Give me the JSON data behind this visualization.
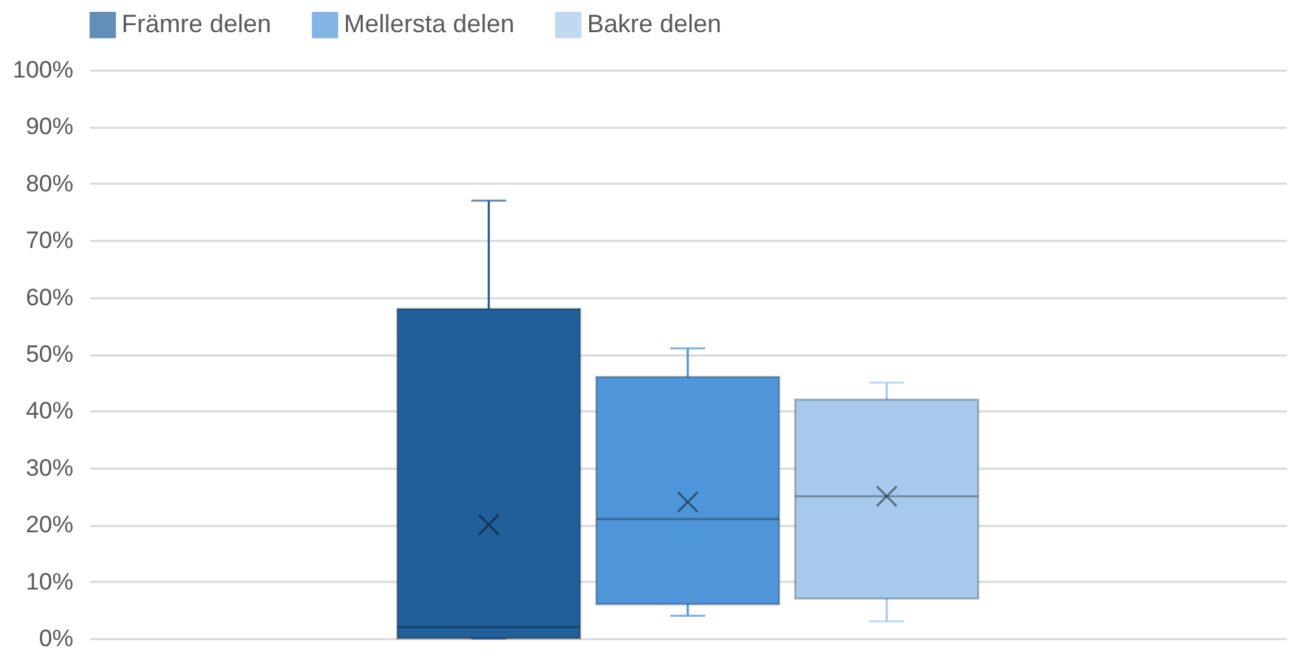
{
  "chart_data": {
    "type": "box",
    "categories": [
      null
    ],
    "series": [
      {
        "name": "Främre delen",
        "color": "#215f9a",
        "boxes": [
          {
            "low": 0,
            "q1": 0,
            "median": 2,
            "q3": 58,
            "high": 77,
            "mean": 20
          }
        ]
      },
      {
        "name": "Mellersta delen",
        "color": "#4e95d9",
        "boxes": [
          {
            "low": 4,
            "q1": 6,
            "median": 21,
            "q3": 46,
            "high": 51,
            "mean": 24
          }
        ]
      },
      {
        "name": "Bakre delen",
        "color": "#a6c9ec",
        "boxes": [
          {
            "low": 3,
            "q1": 7,
            "median": 25,
            "q3": 42,
            "high": 45,
            "mean": 25
          }
        ]
      }
    ],
    "ylim": [
      0,
      100
    ],
    "yticks": [
      {
        "value": 0,
        "label": "0%"
      },
      {
        "value": 10,
        "label": "10%"
      },
      {
        "value": 20,
        "label": "20%"
      },
      {
        "value": 30,
        "label": "30%"
      },
      {
        "value": 40,
        "label": "40%"
      },
      {
        "value": 50,
        "label": "50%"
      },
      {
        "value": 60,
        "label": "60%"
      },
      {
        "value": 70,
        "label": "70%"
      },
      {
        "value": 80,
        "label": "80%"
      },
      {
        "value": 90,
        "label": "90%"
      },
      {
        "value": 100,
        "label": "100%"
      }
    ],
    "grid": "y",
    "legend": "top",
    "tick_labels": "y"
  }
}
